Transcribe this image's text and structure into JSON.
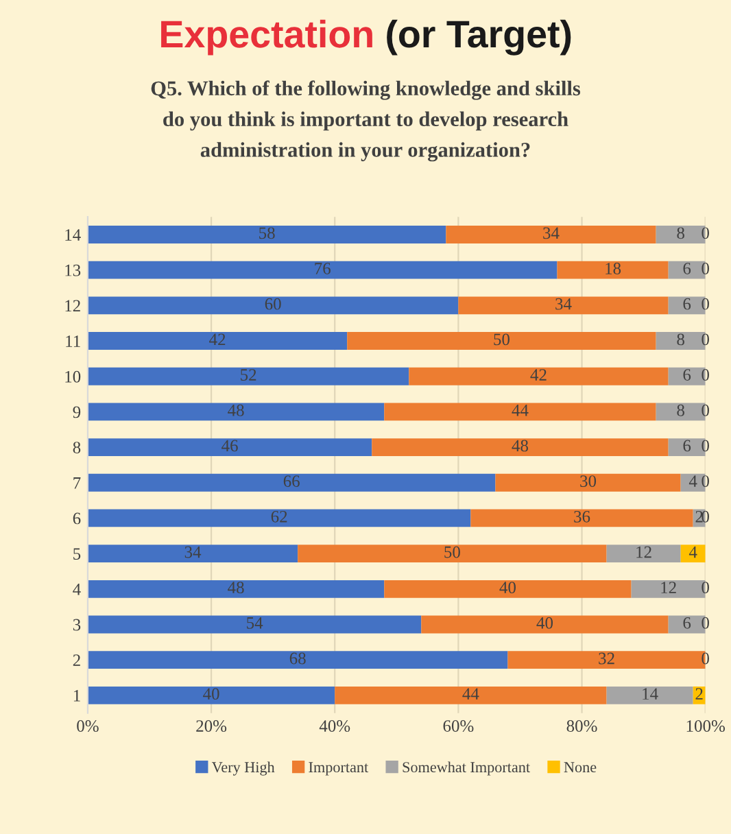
{
  "chart_data": {
    "type": "bar",
    "orientation": "horizontal",
    "stacked": true,
    "title": "Expectation (or Target)",
    "subtitle": "Q5. Which of the following knowledge and skills\ndo you think is important to develop research\nadministration in your organization?",
    "categories": [
      "14",
      "13",
      "12",
      "11",
      "10",
      "9",
      "8",
      "7",
      "6",
      "5",
      "4",
      "3",
      "2",
      "1"
    ],
    "series": [
      {
        "name": "Very High",
        "color": "#4472c4",
        "values": [
          58,
          76,
          60,
          42,
          52,
          48,
          46,
          66,
          62,
          34,
          48,
          54,
          68,
          40
        ],
        "value_labels": [
          "58",
          "76",
          "60",
          "42",
          "52",
          "48",
          "46",
          "66",
          "62",
          "34",
          "48",
          "54",
          "68",
          "40"
        ]
      },
      {
        "name": "Important",
        "color": "#ed7d31",
        "values": [
          34,
          18,
          34,
          50,
          42,
          44,
          48,
          30,
          36,
          50,
          40,
          40,
          32,
          44
        ],
        "value_labels": [
          "34",
          "18",
          "34",
          "50",
          "42",
          "44",
          "48",
          "30",
          "36",
          "50",
          "40",
          "40",
          "32",
          "44"
        ]
      },
      {
        "name": "Somewhat Important",
        "color": "#a5a5a5",
        "values": [
          8,
          6,
          6,
          8,
          6,
          8,
          6,
          4,
          2,
          12,
          12,
          6,
          0,
          14
        ],
        "value_labels": [
          "8",
          "6",
          "6",
          "8",
          "6",
          "8",
          "6",
          "4",
          "2",
          "12",
          "12",
          "6",
          "0",
          "14"
        ]
      },
      {
        "name": "None",
        "color": "#ffc000",
        "values": [
          0,
          0,
          0,
          0,
          0,
          0,
          0,
          0,
          0,
          4,
          0,
          0,
          0,
          2
        ],
        "value_labels": [
          "0",
          "0",
          "0",
          "0",
          "0",
          "0",
          "0",
          "0",
          "0",
          "4",
          "0",
          "0",
          null,
          "2"
        ]
      }
    ],
    "xlim": [
      0,
      100
    ],
    "xticks": [
      {
        "value": 0,
        "label": "0%"
      },
      {
        "value": 20,
        "label": "20%"
      },
      {
        "value": 40,
        "label": "40%"
      },
      {
        "value": 60,
        "label": "60%"
      },
      {
        "value": 80,
        "label": "80%"
      },
      {
        "value": 100,
        "label": "100%"
      }
    ],
    "grid": "x",
    "legend": "bottom"
  }
}
